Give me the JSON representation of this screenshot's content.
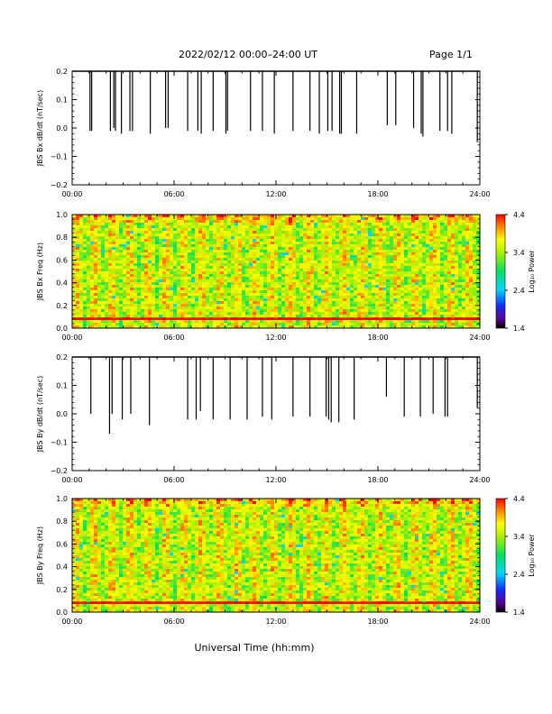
{
  "header": {
    "title": "2022/02/12  00:00–24:00 UT",
    "page": "Page 1/1"
  },
  "xaxis": {
    "label": "Universal Time (hh:mm)",
    "ticks": [
      "00:00",
      "06:00",
      "12:00",
      "18:00",
      "24:00"
    ]
  },
  "colors": {
    "axis": "#000000",
    "background": "#ffffff",
    "spike": "#000000",
    "tone_line": "#ff0000"
  },
  "chart_data": [
    {
      "type": "line",
      "ylabel": "JBS Bx dB/dt (nT/sec)",
      "ylim": [
        -0.2,
        0.2
      ],
      "yticks": [
        "0.2",
        "0.1",
        "0.0",
        "−0.1",
        "−0.2"
      ],
      "xlim": [
        0,
        24
      ],
      "baseline": 0.2,
      "spikes": [
        {
          "t": 1.05,
          "y": -0.01
        },
        {
          "t": 1.15,
          "y": -0.01
        },
        {
          "t": 2.25,
          "y": -0.01
        },
        {
          "t": 2.45,
          "y": 0.0
        },
        {
          "t": 2.55,
          "y": -0.01
        },
        {
          "t": 2.9,
          "y": -0.02
        },
        {
          "t": 3.4,
          "y": -0.01
        },
        {
          "t": 3.55,
          "y": -0.01
        },
        {
          "t": 4.6,
          "y": -0.02
        },
        {
          "t": 5.5,
          "y": 0.0
        },
        {
          "t": 5.65,
          "y": 0.0
        },
        {
          "t": 6.8,
          "y": -0.01
        },
        {
          "t": 7.4,
          "y": -0.01
        },
        {
          "t": 7.6,
          "y": -0.02
        },
        {
          "t": 8.3,
          "y": -0.01
        },
        {
          "t": 9.05,
          "y": -0.02
        },
        {
          "t": 9.15,
          "y": -0.01
        },
        {
          "t": 10.5,
          "y": -0.01
        },
        {
          "t": 11.2,
          "y": -0.01
        },
        {
          "t": 11.9,
          "y": -0.02
        },
        {
          "t": 13.0,
          "y": -0.01
        },
        {
          "t": 14.0,
          "y": -0.01
        },
        {
          "t": 14.55,
          "y": -0.02
        },
        {
          "t": 15.05,
          "y": -0.01
        },
        {
          "t": 15.3,
          "y": -0.01
        },
        {
          "t": 15.75,
          "y": -0.02
        },
        {
          "t": 15.85,
          "y": -0.02
        },
        {
          "t": 16.75,
          "y": -0.02
        },
        {
          "t": 18.55,
          "y": 0.01
        },
        {
          "t": 19.05,
          "y": 0.01
        },
        {
          "t": 20.1,
          "y": 0.0
        },
        {
          "t": 20.55,
          "y": -0.02
        },
        {
          "t": 20.65,
          "y": -0.03
        },
        {
          "t": 21.65,
          "y": -0.01
        },
        {
          "t": 22.1,
          "y": -0.01
        },
        {
          "t": 22.35,
          "y": -0.02
        },
        {
          "t": 23.85,
          "y": -0.05
        }
      ]
    },
    {
      "type": "heatmap",
      "ylabel": "JBS Bx Freq (Hz)",
      "ylim": [
        0,
        1
      ],
      "yticks": [
        "1.0",
        "0.8",
        "0.6",
        "0.4",
        "0.2",
        "0.0"
      ],
      "xlim": [
        0,
        24
      ],
      "colorbar": {
        "label": "Log₁₀ Power",
        "range": [
          1.4,
          4.4
        ],
        "ticks": [
          "4.4",
          "3.4",
          "2.4",
          "1.4"
        ]
      },
      "noise_band_freq": 0.08
    },
    {
      "type": "line",
      "ylabel": "JBS By dB/dt (nT/sec)",
      "ylim": [
        -0.2,
        0.2
      ],
      "yticks": [
        "0.2",
        "0.1",
        "0.0",
        "−0.1",
        "−0.2"
      ],
      "xlim": [
        0,
        24
      ],
      "baseline": 0.2,
      "spikes": [
        {
          "t": 1.1,
          "y": 0.0
        },
        {
          "t": 2.2,
          "y": -0.07
        },
        {
          "t": 2.35,
          "y": 0.0
        },
        {
          "t": 2.95,
          "y": -0.02
        },
        {
          "t": 3.45,
          "y": 0.0
        },
        {
          "t": 4.55,
          "y": -0.04
        },
        {
          "t": 6.8,
          "y": -0.02
        },
        {
          "t": 7.3,
          "y": -0.02
        },
        {
          "t": 7.55,
          "y": 0.01
        },
        {
          "t": 8.3,
          "y": -0.02
        },
        {
          "t": 9.3,
          "y": -0.02
        },
        {
          "t": 10.3,
          "y": -0.02
        },
        {
          "t": 11.2,
          "y": -0.01
        },
        {
          "t": 11.75,
          "y": -0.02
        },
        {
          "t": 13.0,
          "y": -0.01
        },
        {
          "t": 14.0,
          "y": -0.01
        },
        {
          "t": 14.95,
          "y": -0.01
        },
        {
          "t": 15.1,
          "y": -0.02
        },
        {
          "t": 15.25,
          "y": -0.03
        },
        {
          "t": 15.7,
          "y": -0.03
        },
        {
          "t": 16.6,
          "y": -0.02
        },
        {
          "t": 18.5,
          "y": 0.06
        },
        {
          "t": 19.55,
          "y": -0.01
        },
        {
          "t": 20.5,
          "y": -0.01
        },
        {
          "t": 21.25,
          "y": 0.0
        },
        {
          "t": 21.95,
          "y": -0.01
        },
        {
          "t": 22.1,
          "y": -0.01
        },
        {
          "t": 23.85,
          "y": 0.02
        }
      ]
    },
    {
      "type": "heatmap",
      "ylabel": "JBS By Freq (Hz)",
      "ylim": [
        0,
        1
      ],
      "yticks": [
        "1.0",
        "0.8",
        "0.6",
        "0.4",
        "0.2",
        "0.0"
      ],
      "xlim": [
        0,
        24
      ],
      "colorbar": {
        "label": "Log₁₀ Power",
        "range": [
          1.4,
          4.4
        ],
        "ticks": [
          "4.4",
          "3.4",
          "2.4",
          "1.4"
        ]
      },
      "noise_band_freq": 0.08
    }
  ]
}
